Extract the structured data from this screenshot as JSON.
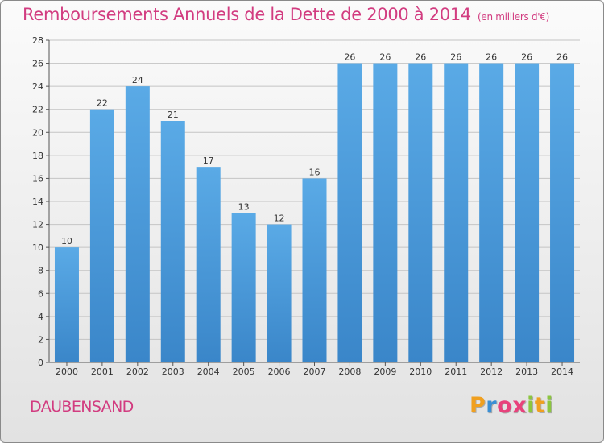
{
  "chart_data": {
    "type": "bar",
    "title": "Remboursements Annuels de la Dette de 2000 à 2014",
    "unit_label": "(en milliers d'€)",
    "categories": [
      "2000",
      "2001",
      "2002",
      "2003",
      "2004",
      "2005",
      "2006",
      "2007",
      "2008",
      "2009",
      "2010",
      "2011",
      "2012",
      "2013",
      "2014"
    ],
    "values": [
      10,
      22,
      24,
      21,
      17,
      13,
      12,
      16,
      26,
      26,
      26,
      26,
      26,
      26,
      26
    ],
    "ylim": [
      0,
      28
    ],
    "yticks": [
      0,
      2,
      4,
      6,
      8,
      10,
      12,
      14,
      16,
      18,
      20,
      22,
      24,
      26,
      28
    ],
    "xlabel": "",
    "ylabel": "",
    "grid": true,
    "bar_color": "#5aaae6",
    "bar_color_bottom": "#3a86c9"
  },
  "place_name": "DAUBENSAND",
  "brand": {
    "letters": [
      "P",
      "r",
      "o",
      "x",
      "i",
      "t",
      "i"
    ],
    "colors": [
      "#f0a020",
      "#3a8fd4",
      "#e8427c",
      "#e8427c",
      "#8cc63f",
      "#f0a020",
      "#8cc63f"
    ]
  },
  "title_color": "#d23c80"
}
